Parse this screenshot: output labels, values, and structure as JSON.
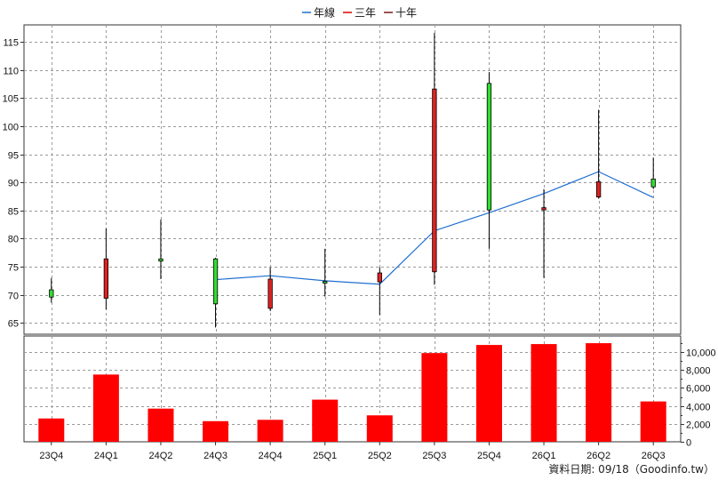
{
  "chart_data": [
    {
      "type": "candlestick",
      "legend": [
        "年線",
        "三年",
        "十年"
      ],
      "legend_position": "top-center",
      "grid": true,
      "categories": [
        "23Q4",
        "24Q1",
        "24Q2",
        "24Q3",
        "24Q4",
        "25Q1",
        "25Q2",
        "25Q3",
        "25Q4",
        "26Q1",
        "26Q2",
        "26Q3"
      ],
      "y_ticks": [
        65,
        70,
        75,
        80,
        85,
        90,
        95,
        100,
        105,
        110,
        115
      ],
      "ylim": [
        63,
        118
      ],
      "ohlc": [
        {
          "open": 69.6,
          "high": 73.0,
          "low": 68.6,
          "close": 70.9
        },
        {
          "open": 76.4,
          "high": 81.8,
          "low": 67.4,
          "close": 69.4
        },
        {
          "open": 76.0,
          "high": 83.4,
          "low": 72.8,
          "close": 76.4
        },
        {
          "open": 68.4,
          "high": 76.6,
          "low": 64.2,
          "close": 76.4
        },
        {
          "open": 72.8,
          "high": 74.9,
          "low": 67.1,
          "close": 67.6
        },
        {
          "open": 72.2,
          "high": 78.2,
          "low": 69.7,
          "close": 72.4
        },
        {
          "open": 73.9,
          "high": 74.9,
          "low": 66.4,
          "close": 72.3
        },
        {
          "open": 106.6,
          "high": 116.6,
          "low": 71.8,
          "close": 74.1
        },
        {
          "open": 85.1,
          "high": 109.6,
          "low": 78.2,
          "close": 107.6
        },
        {
          "open": 85.5,
          "high": 88.8,
          "low": 73.0,
          "close": 85.1
        },
        {
          "open": 90.1,
          "high": 102.9,
          "low": 87.1,
          "close": 87.4
        },
        {
          "open": 89.2,
          "high": 94.4,
          "low": 88.8,
          "close": 90.6
        }
      ],
      "line_series": {
        "name": "年線",
        "from_index": 3,
        "values": [
          72.7,
          73.4,
          72.5,
          71.9,
          81.4,
          84.6,
          88.0,
          91.9,
          87.3
        ]
      }
    },
    {
      "type": "bar",
      "categories": [
        "23Q4",
        "24Q1",
        "24Q2",
        "24Q3",
        "24Q4",
        "25Q1",
        "25Q2",
        "25Q3",
        "25Q4",
        "26Q1",
        "26Q2",
        "26Q3"
      ],
      "values": [
        2600,
        7500,
        3700,
        2300,
        2450,
        4700,
        2950,
        9900,
        10800,
        10900,
        11000,
        4500
      ],
      "y_ticks": [
        "0",
        "2,000",
        "4,000",
        "6,000",
        "8,000",
        "10,000"
      ],
      "y_tick_values": [
        0,
        2000,
        4000,
        6000,
        8000,
        10000
      ],
      "ylim": [
        0,
        11800
      ],
      "grid": true
    }
  ],
  "footer_text": "資料日期: 09/18（Goodinfo.tw）",
  "colors": {
    "up_fill": "#33dd33",
    "down_fill": "#dd2222",
    "wick": "#000000",
    "line": "#1f6fd1",
    "legend_line1": "#1f6fd1",
    "legend_line2": "#dd0000",
    "legend_line3": "#7a1a1a",
    "bar": "#ff0000",
    "grid": "#9a9a9a"
  }
}
